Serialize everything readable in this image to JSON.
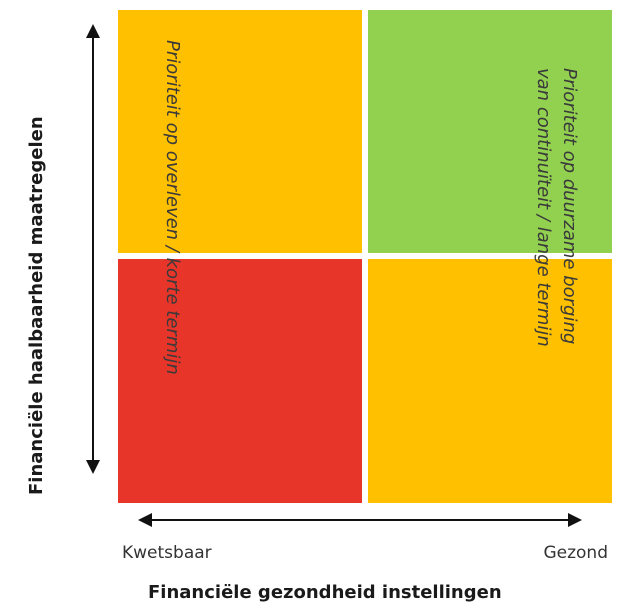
{
  "quadrants": {
    "top_left": {
      "color": "#FFC000"
    },
    "top_right": {
      "color": "#92D050"
    },
    "bottom_left": {
      "color": "#E8352A"
    },
    "bottom_right": {
      "color": "#FFC000"
    }
  },
  "labels": {
    "survival": "Prioriteit op overleven / korte termijn",
    "continuity_line1": "Prioriteit op duurzame borging",
    "continuity_line2": "van continuïteit / lange termijn"
  },
  "y_axis": {
    "label": "Financiële haalbaarheid maatregelen"
  },
  "x_axis": {
    "label": "Financiële gezondheid instellingen",
    "low_label": "Kwetsbaar",
    "high_label": "Gezond"
  }
}
